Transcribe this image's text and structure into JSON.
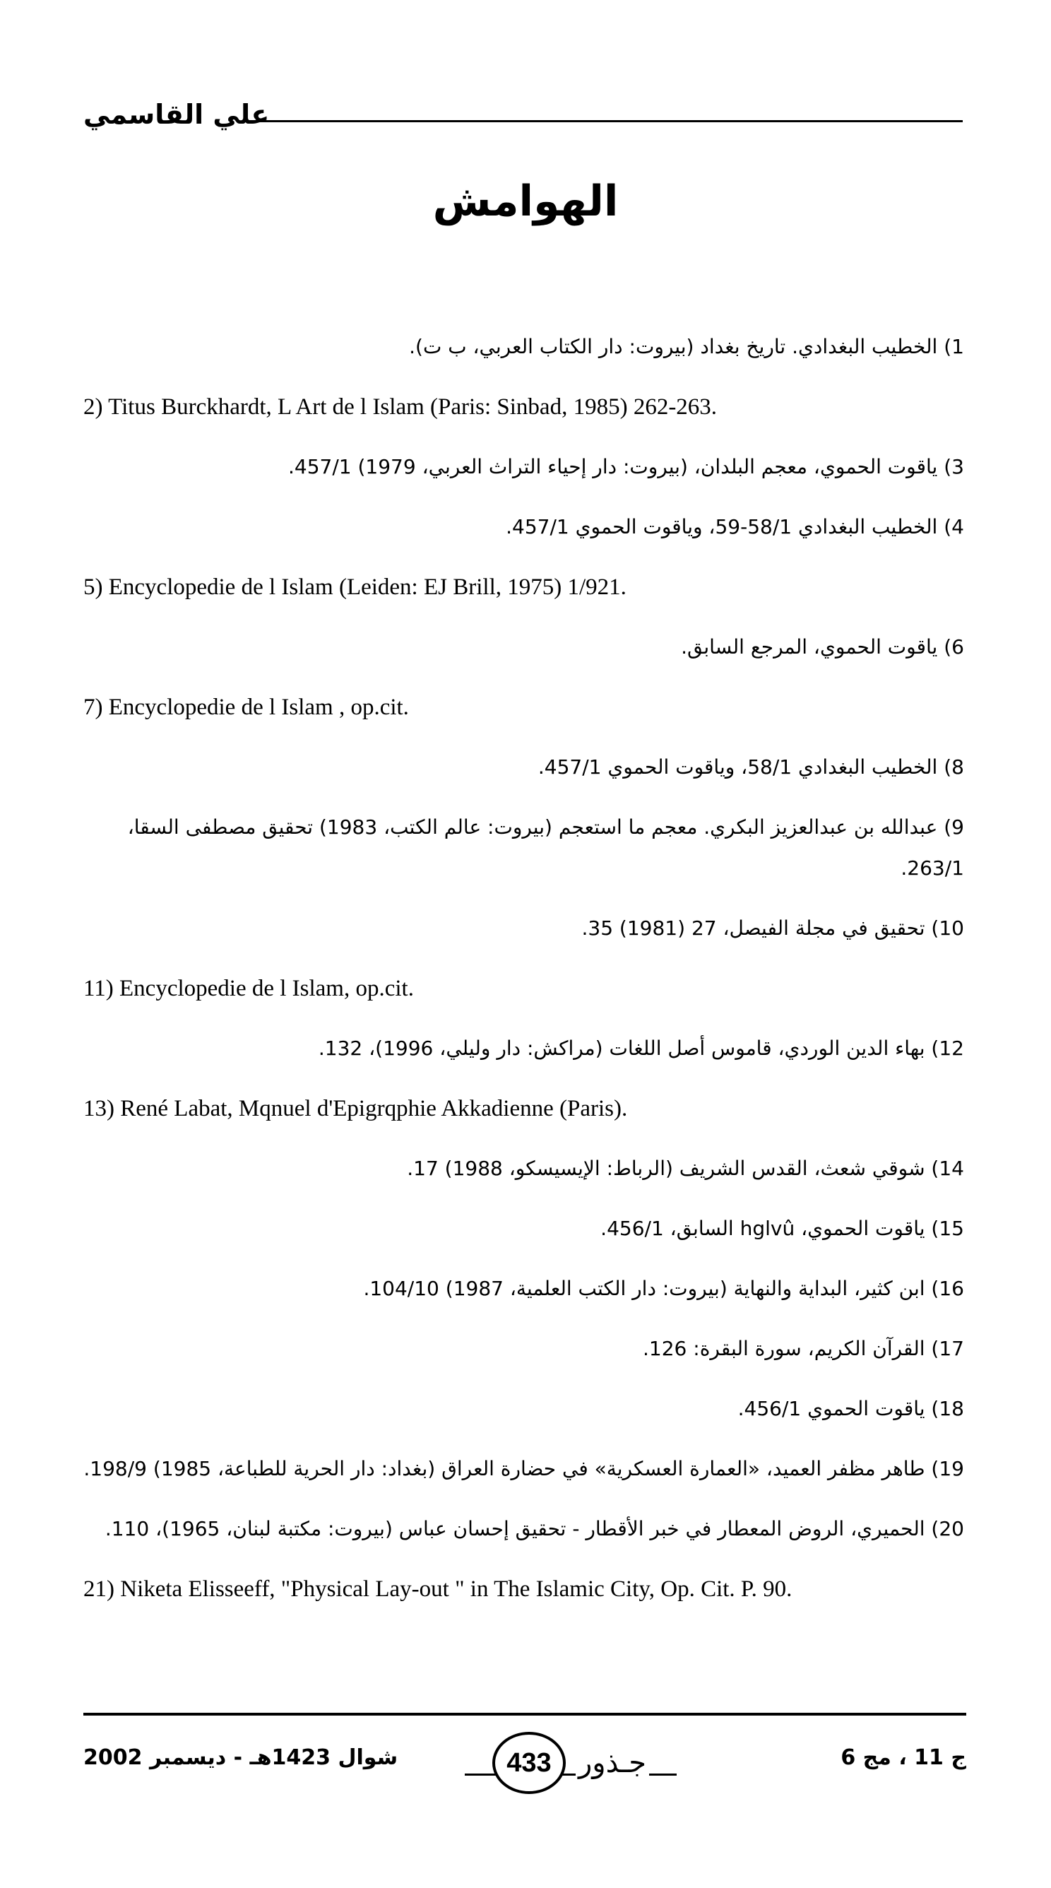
{
  "header": {
    "author": "علي القاسمي"
  },
  "title": "الهوامش",
  "notes": [
    {
      "lang": "ar",
      "text": "1) الخطيب البغدادي. تاريخ بغداد (بيروت: دار الكتاب العربي، ب ت)."
    },
    {
      "lang": "en",
      "text": "2) Titus Burckhardt, L Art de  l Islam (Paris: Sinbad, 1985) 262-263."
    },
    {
      "lang": "ar",
      "text": "3) ياقوت الحموي، معجم البلدان، (بيروت: دار إحياء التراث العربي، 1979) 457/1."
    },
    {
      "lang": "ar",
      "text": "4) الخطيب البغدادي 58/1-59، وياقوت الحموي 457/1."
    },
    {
      "lang": "en",
      "text": "5) Encyclopedie de l Islam (Leiden: EJ Brill, 1975) 1/921."
    },
    {
      "lang": "ar",
      "text": "6) ياقوت الحموي، المرجع السابق."
    },
    {
      "lang": "en",
      "text": "7) Encyclopedie de l Islam , op.cit."
    },
    {
      "lang": "ar",
      "text": "8) الخطيب البغدادي 58/1، وياقوت الحموي 457/1."
    },
    {
      "lang": "ar",
      "text": "9) عبدالله بن عبدالعزيز البكري. معجم ما استعجم (بيروت: عالم الكتب، 1983) تحقيق مصطفى السقا، 263/1."
    },
    {
      "lang": "ar",
      "text": "10) تحقيق في مجلة الفيصل، 27 (1981) 35."
    },
    {
      "lang": "en",
      "text": "11) Encyclopedie de l Islam, op.cit."
    },
    {
      "lang": "ar",
      "text": "12) بهاء الدين الوردي، قاموس أصل اللغات (مراكش: دار وليلي، 1996)، 132."
    },
    {
      "lang": "en",
      "text": "13) René Labat, Mqnuel d'Epigrqphie Akkadienne (Paris)."
    },
    {
      "lang": "ar",
      "text": "14) شوقي شعث، القدس الشريف (الرباط: الإيسيسكو، 1988) 17."
    },
    {
      "lang": "ar",
      "text": "15) ياقوت الحموي، hglvû السابق، 456/1."
    },
    {
      "lang": "ar",
      "text": "16) ابن كثير، البداية والنهاية (بيروت: دار الكتب العلمية، 1987) 104/10."
    },
    {
      "lang": "ar",
      "text": "17) القرآن الكريم، سورة البقرة: 126."
    },
    {
      "lang": "ar",
      "text": "18) ياقوت الحموي 456/1."
    },
    {
      "lang": "ar",
      "text": "19) طاهر مظفر العميد، «العمارة العسكرية» في حضارة العراق (بغداد: دار الحرية للطباعة، 1985) 198/9."
    },
    {
      "lang": "ar",
      "text": "20) الحميري، الروض المعطار في خبر الأقطار - تحقيق إحسان عباس (بيروت: مكتبة لبنان، 1965)، 110."
    },
    {
      "lang": "en",
      "text": "21) Niketa Elisseeff, \"Physical Lay-out \" in The Islamic City, Op. Cit. P. 90."
    }
  ],
  "footer": {
    "date": "شوال 1423هـ - ديسمبر 2002",
    "journal": "جـذور",
    "page_number": "433",
    "issue": "ج 11 ، مج 6"
  }
}
